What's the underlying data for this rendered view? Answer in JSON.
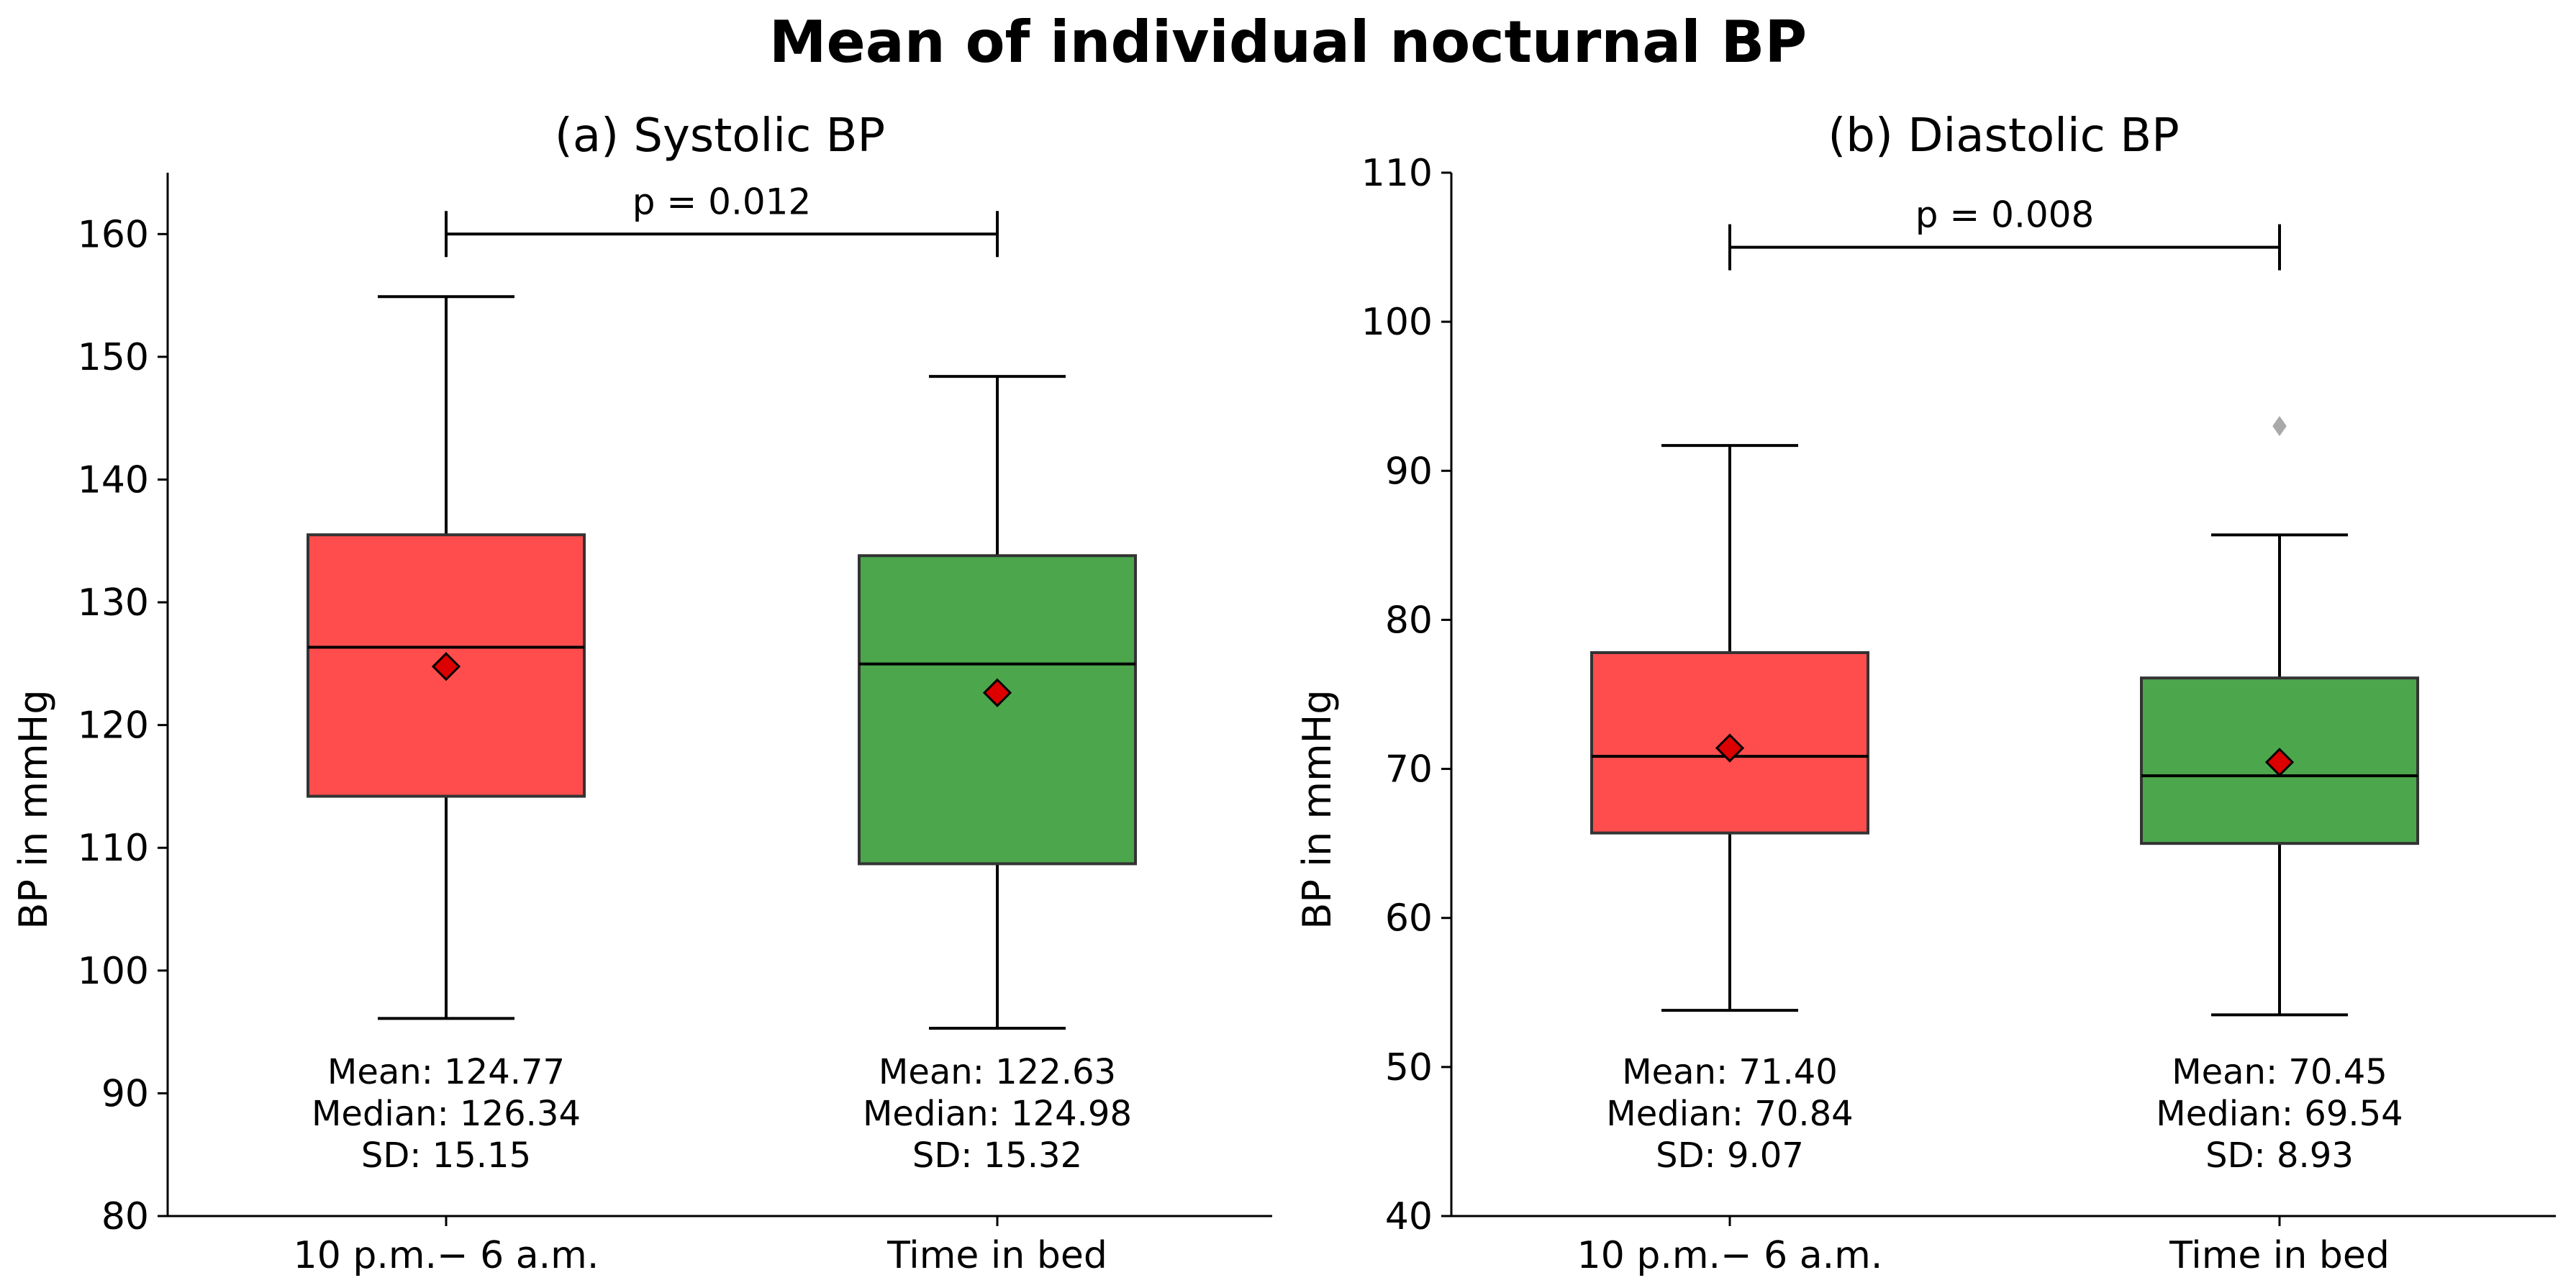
{
  "title": "Mean of individual nocturnal BP",
  "colors": {
    "box_a": "#ff4d4d",
    "box_b": "#4ca64c",
    "mean_marker": "#dd0000",
    "outlier": "#a9a9a9"
  },
  "chart_data": [
    {
      "type": "box",
      "title": "(a) Systolic BP",
      "ylabel": "BP in mmHg",
      "ylim": [
        80,
        165
      ],
      "yticks": [
        80,
        90,
        100,
        110,
        120,
        130,
        140,
        150,
        160
      ],
      "categories": [
        "10 p.m.− 6 a.m.",
        "Time in bed"
      ],
      "boxes": [
        {
          "whisker_low": 96.1,
          "q1": 114.2,
          "median": 126.34,
          "q3": 135.5,
          "whisker_high": 154.9,
          "mean": 124.77,
          "outliers": [],
          "stats": [
            "Mean: 124.77",
            "Median: 126.34",
            "SD: 15.15"
          ]
        },
        {
          "whisker_low": 95.3,
          "q1": 108.7,
          "median": 124.98,
          "q3": 133.8,
          "whisker_high": 148.4,
          "mean": 122.63,
          "outliers": [],
          "stats": [
            "Mean: 122.63",
            "Median: 124.98",
            "SD: 15.32"
          ]
        }
      ],
      "bracket_y": 160,
      "p_label": "p = 0.012"
    },
    {
      "type": "box",
      "title": "(b) Diastolic BP",
      "ylabel": "BP in mmHg",
      "ylim": [
        40,
        110
      ],
      "yticks": [
        40,
        50,
        60,
        70,
        80,
        90,
        100,
        110
      ],
      "categories": [
        "10 p.m.− 6 a.m.",
        "Time in bed"
      ],
      "boxes": [
        {
          "whisker_low": 53.8,
          "q1": 65.7,
          "median": 70.84,
          "q3": 77.8,
          "whisker_high": 91.7,
          "mean": 71.4,
          "outliers": [],
          "stats": [
            "Mean: 71.40",
            "Median: 70.84",
            "SD: 9.07"
          ]
        },
        {
          "whisker_low": 53.5,
          "q1": 65.0,
          "median": 69.54,
          "q3": 76.1,
          "whisker_high": 85.7,
          "mean": 70.45,
          "outliers": [
            93.0
          ],
          "stats": [
            "Mean: 70.45",
            "Median: 69.54",
            "SD: 8.93"
          ]
        }
      ],
      "bracket_y": 105,
      "p_label": "p = 0.008"
    }
  ]
}
